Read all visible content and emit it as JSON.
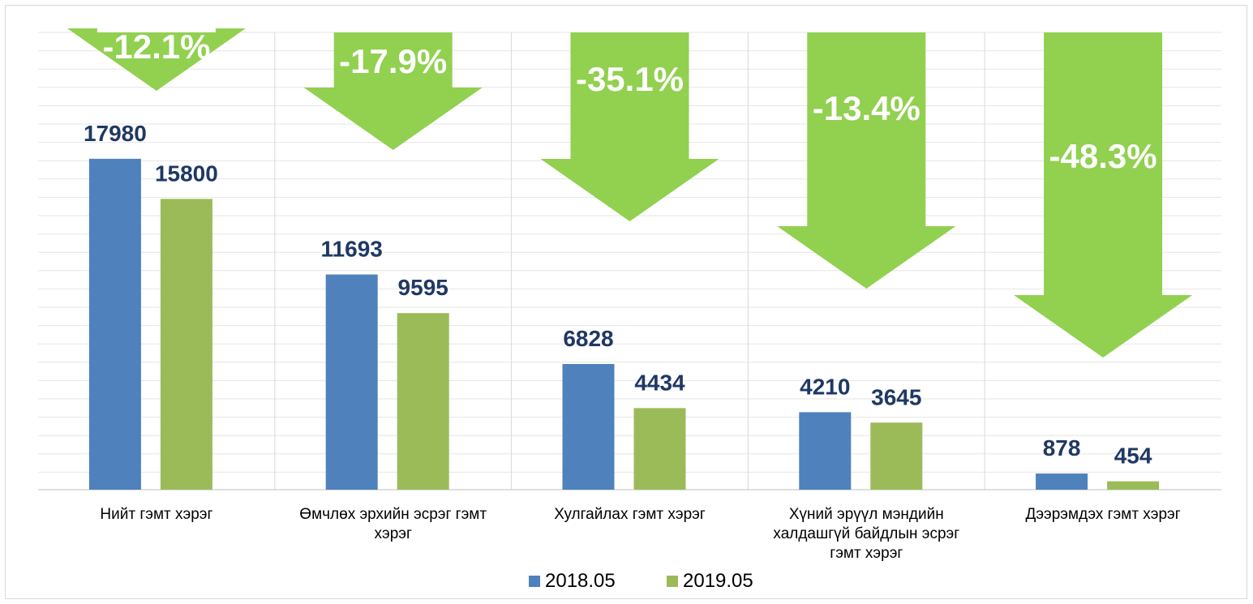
{
  "colors": {
    "series_2018": "#4f81bd",
    "series_2019": "#9bbb59",
    "arrow": "#92d050",
    "value_label": "#1f3864",
    "grid": "#e6e6e6"
  },
  "chart_data": {
    "type": "bar",
    "categories": [
      [
        "Нийт гэмт хэрэг"
      ],
      [
        "Өмчлөх эрхийн эсрэг гэмт",
        "хэрэг"
      ],
      [
        "Хулгайлах гэмт хэрэг"
      ],
      [
        "Хүний эрүүл мэндийн",
        "халдашгүй байдлын эсрэг",
        "гэмт хэрэг"
      ],
      [
        "Дээрэмдэх гэмт хэрэг"
      ]
    ],
    "series": [
      {
        "name": "2018.05",
        "values": [
          17980,
          11693,
          6828,
          4210,
          878
        ]
      },
      {
        "name": "2019.05",
        "values": [
          15800,
          9595,
          4434,
          3645,
          454
        ]
      }
    ],
    "value_labels": [
      [
        "17980",
        "11693",
        "6828",
        "4210",
        "878"
      ],
      [
        "15800",
        "9595",
        "4434",
        "3645",
        "454"
      ]
    ],
    "change_labels": [
      "-12.1%",
      "-17.9%",
      "-35.1%",
      "-13.4%",
      "-48.3%"
    ],
    "legend_position": "bottom",
    "grid": true
  }
}
